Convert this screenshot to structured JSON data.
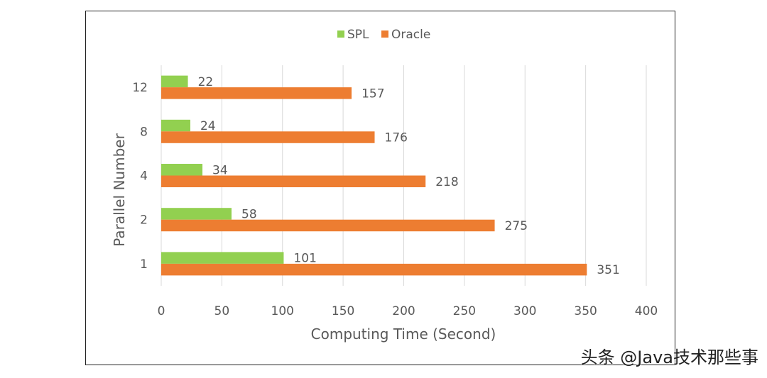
{
  "chart_data": {
    "type": "bar",
    "orientation": "horizontal",
    "categories": [
      "1",
      "2",
      "4",
      "8",
      "12"
    ],
    "series": [
      {
        "name": "SPL",
        "values": [
          101,
          58,
          34,
          24,
          22
        ],
        "color": "#92d050"
      },
      {
        "name": "Oracle",
        "values": [
          351,
          275,
          218,
          176,
          157
        ],
        "color": "#ed7d31"
      }
    ],
    "xlabel": "Computing Time (Second)",
    "ylabel": "Parallel Number",
    "xlim": [
      0,
      400
    ],
    "xticks": [
      0,
      50,
      100,
      150,
      200,
      250,
      300,
      350,
      400
    ],
    "grid": "vertical",
    "legend_position": "top-center",
    "data_labels": true
  },
  "watermark": "头条 @Java技术那些事"
}
